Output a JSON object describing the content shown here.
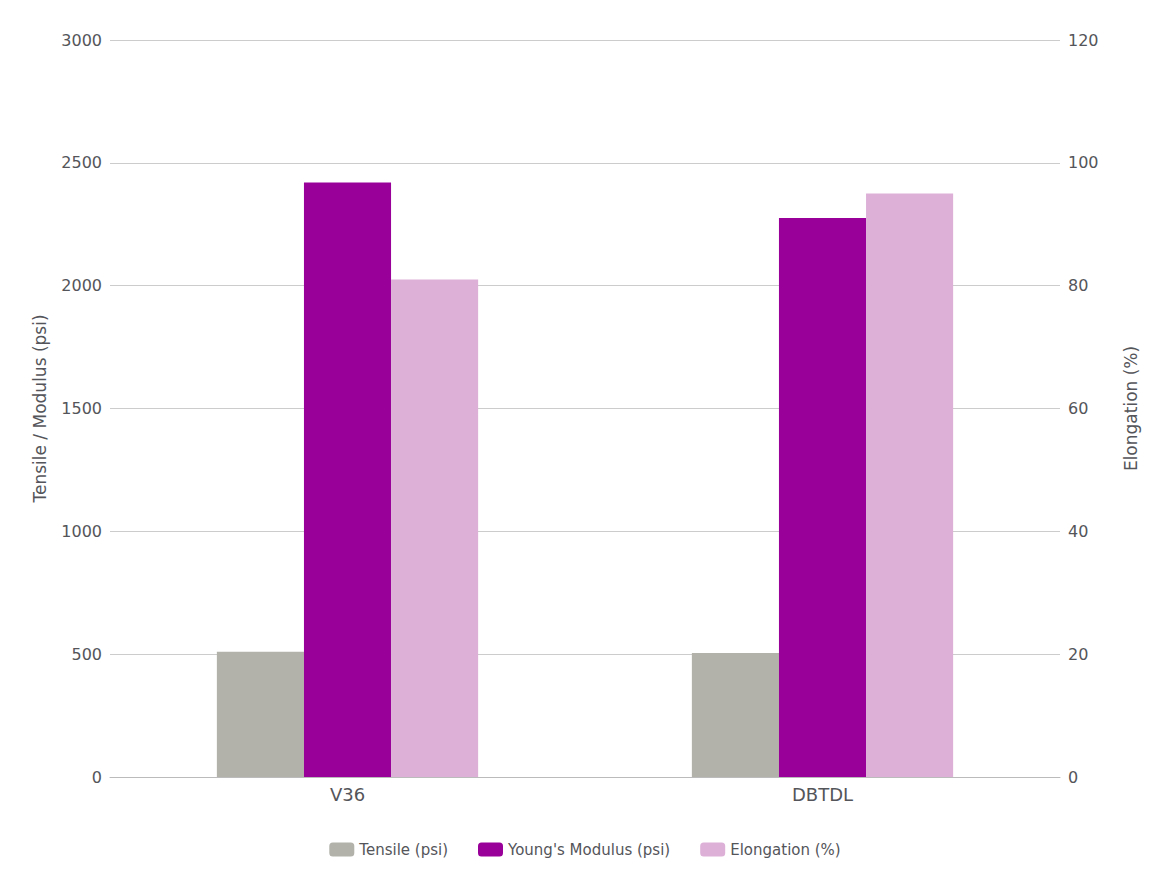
{
  "chart_data": {
    "type": "bar",
    "categories": [
      "V36",
      "DBTDL"
    ],
    "series": [
      {
        "name": "Tensile (psi)",
        "color": "#b2b2aa",
        "values": [
          510,
          505
        ]
      },
      {
        "name": "Young's Modulus (psi)",
        "color": "#990099",
        "values": [
          2420,
          2275
        ]
      },
      {
        "name": "Elongation (%)",
        "color": "#ddb0d8",
        "values": [
          81,
          95
        ],
        "axis": "y2"
      }
    ],
    "ylabel": "Tensile / Modulus (psi)",
    "y2label": "Elongation (%)",
    "ylim": [
      0,
      3000
    ],
    "yticks": [
      0,
      500,
      1000,
      1500,
      2000,
      2500,
      3000
    ],
    "y2lim": [
      0,
      120
    ],
    "y2ticks": [
      0,
      20,
      40,
      60,
      80,
      100,
      120
    ],
    "grid": true,
    "legend": "bottom"
  }
}
